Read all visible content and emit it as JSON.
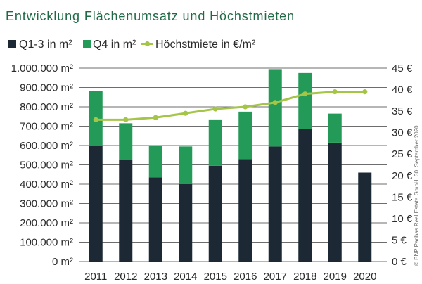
{
  "chart_data": {
    "type": "bar",
    "stacked": true,
    "title": "Entwicklung Flächenumsatz und Höchstmieten",
    "categories": [
      "2011",
      "2012",
      "2013",
      "2014",
      "2015",
      "2016",
      "2017",
      "2018",
      "2019",
      "2020"
    ],
    "series": [
      {
        "name": "Q1-3 in m²",
        "type": "bar",
        "secondary_axis": false,
        "color": "#1c2833",
        "values": [
          600000,
          525000,
          435000,
          400000,
          495000,
          530000,
          595000,
          685000,
          615000,
          460000
        ]
      },
      {
        "name": "Q4 in m²",
        "type": "bar",
        "secondary_axis": false,
        "color": "#239a57",
        "values": [
          280000,
          190000,
          165000,
          195000,
          240000,
          245000,
          400000,
          290000,
          150000,
          null
        ]
      },
      {
        "name": "Höchstmiete in €/m²",
        "type": "line",
        "secondary_axis": true,
        "color": "#a4c546",
        "values": [
          33.0,
          33.0,
          33.5,
          34.5,
          35.5,
          36.0,
          37.0,
          39.0,
          39.5,
          39.5
        ]
      }
    ],
    "ylim": [
      0,
      1000000
    ],
    "y_tick_labels": [
      "0 m²",
      "100.000 m²",
      "200.000 m²",
      "300.000 m²",
      "400.000 m²",
      "500.000 m²",
      "600.000 m²",
      "700.000 m²",
      "800.000 m²",
      "900.000 m²",
      "1.000.000 m²"
    ],
    "y2lim": [
      0,
      45
    ],
    "y2_tick_labels": [
      "0 €",
      "5 €",
      "10 €",
      "15 €",
      "20 €",
      "25 €",
      "30 €",
      "35 €",
      "40 €",
      "45 €"
    ],
    "grid": true
  },
  "colors": {
    "title": "#1f6a45"
  },
  "source_note": "© BNP Paribas Real Estate GmbH, 30. September 2020"
}
